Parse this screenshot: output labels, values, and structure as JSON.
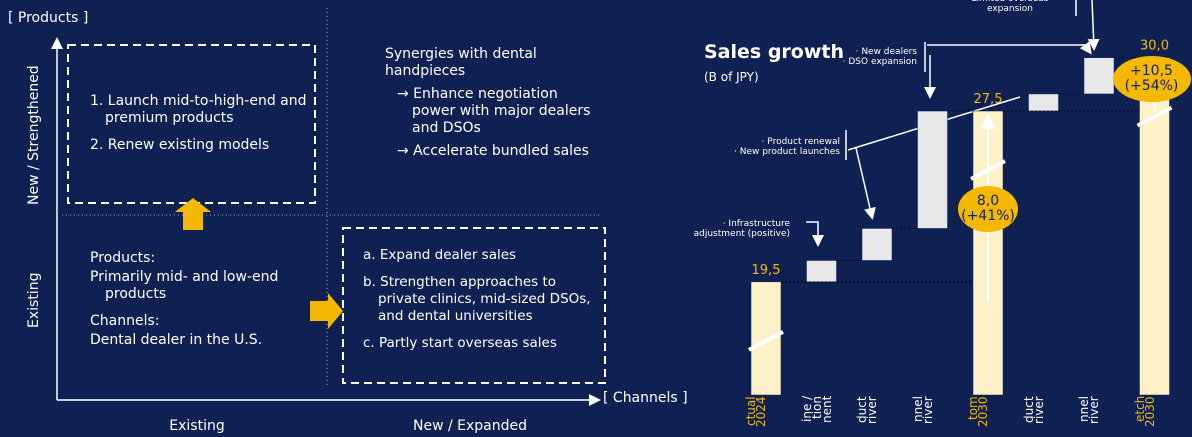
{
  "matrix": {
    "y_axis_title": "[ Products ]",
    "y_labels": [
      "New / Strengthened",
      "Existing"
    ],
    "x_labels": [
      "Existing",
      "New / Expanded"
    ],
    "x_axis_title": "[ Channels ]",
    "top_left": [
      "1. Launch mid-to-high-end and premium products",
      "2. Renew existing models"
    ],
    "top_right": [
      "Synergies with dental handpieces",
      "→ Enhance negotiation power with major dealers and DSOs",
      "→ Accelerate bundled sales"
    ],
    "bottom_left": [
      "Products:",
      "Primarily mid- and low-end products",
      "Channels:",
      "Dental dealer in the U.S."
    ],
    "bottom_right": [
      "a. Expand dealer sales",
      "b. Strengthen approaches to private clinics, mid-sized DSOs, and dental universities",
      "c. Partly start overseas sales"
    ]
  },
  "chart_data": {
    "type": "waterfall",
    "title": "Sales growth",
    "subtitle": "(B of JPY)",
    "categories": [
      "ctual\n2024",
      "ine /\ntion\nnent",
      "duct\nriver",
      "nnel\nriver",
      "tom\n2030",
      "duct\nriver",
      "nnel\nriver",
      "etch\n2030"
    ],
    "values": [
      19.5,
      1.0,
      1.5,
      5.5,
      27.5,
      0.8,
      1.7,
      30.0
    ],
    "value_labels": [
      "19,5",
      null,
      null,
      null,
      "27,5",
      null,
      null,
      "30,0"
    ],
    "totals": [
      true,
      false,
      false,
      false,
      true,
      false,
      false,
      true
    ],
    "total_color": "#fdf1c8",
    "step_color": "#e8e8ea",
    "label_color": "#f5b800",
    "ylim": [
      14.2,
      32.7
    ],
    "growth": [
      {
        "text": "8,0\n(+41%)",
        "values": [
          8.0,
          41
        ]
      },
      {
        "text": "+10,5\n(+54%)",
        "values": [
          10.5,
          54
        ]
      }
    ],
    "annotations": [
      "· Infrastructure\nadjustment (positive)",
      "· Product renewal\n· New product launches",
      "· New dealers\n· DSO expansion",
      "Limited overseas\nexpansion"
    ]
  }
}
